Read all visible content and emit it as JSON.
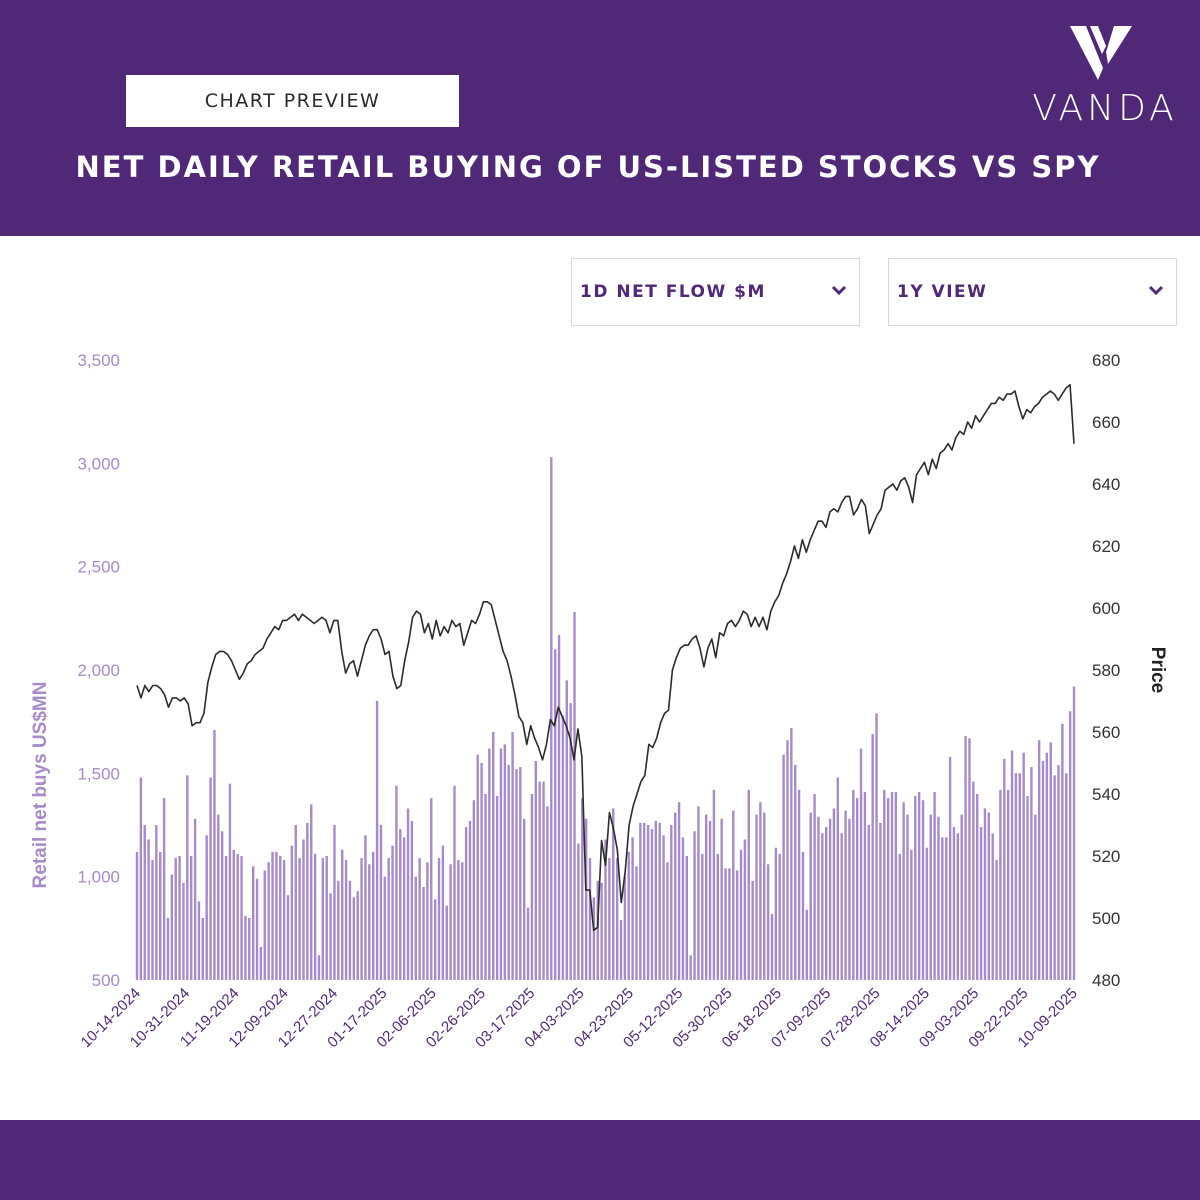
{
  "header": {
    "preview_label": "CHART PREVIEW",
    "title": "NET DAILY RETAIL BUYING OF US-LISTED STOCKS VS SPY",
    "brand": "VANDA",
    "background": "#512877"
  },
  "controls": {
    "metric_dropdown": "1D NET FLOW $M",
    "view_dropdown": "1Y VIEW",
    "dropdown_icon": "chevron-down-icon"
  },
  "chart_data": {
    "type": "bar+line",
    "title": "",
    "ylabel_left": "Retail net buys US$MN",
    "ylabel_right": "Price",
    "ylim_left": [
      500,
      3500
    ],
    "ylim_right": [
      480,
      680
    ],
    "yticks_left": [
      "500",
      "1,000",
      "1,500",
      "2,000",
      "2,500",
      "3,000",
      "3,500"
    ],
    "yticks_right": [
      "480",
      "500",
      "520",
      "540",
      "560",
      "580",
      "600",
      "620",
      "640",
      "660",
      "680"
    ],
    "xticks": [
      "10-14-2024",
      "10-31-2024",
      "11-19-2024",
      "12-09-2024",
      "12-27-2024",
      "01-17-2025",
      "02-06-2025",
      "02-26-2025",
      "03-17-2025",
      "04-03-2025",
      "04-23-2025",
      "05-12-2025",
      "05-30-2025",
      "06-18-2025",
      "07-09-2025",
      "07-28-2025",
      "08-14-2025",
      "09-03-2025",
      "09-22-2025",
      "10-09-2025"
    ],
    "bar_color": "#a78ac9",
    "line_color": "#2b2b2b",
    "series": [
      {
        "name": "Retail net buys",
        "axis": "left",
        "values": [
          1120,
          1480,
          1250,
          1180,
          1080,
          1250,
          1120,
          1380,
          800,
          1010,
          1090,
          1100,
          970,
          1490,
          1100,
          1280,
          880,
          800,
          1200,
          1480,
          1710,
          1300,
          1220,
          1100,
          1450,
          1130,
          1110,
          1100,
          810,
          800,
          1050,
          990,
          660,
          1030,
          1070,
          1120,
          1120,
          1100,
          1080,
          910,
          1150,
          1250,
          1090,
          1180,
          1260,
          1350,
          1110,
          620,
          1090,
          1100,
          920,
          1250,
          980,
          1130,
          1080,
          980,
          900,
          930,
          1090,
          1200,
          1060,
          1120,
          1850,
          1250,
          1000,
          1090,
          1150,
          1440,
          1230,
          1190,
          1330,
          1270,
          1000,
          1090,
          950,
          1070,
          1380,
          890,
          1090,
          1150,
          860,
          1060,
          1440,
          1080,
          1070,
          1240,
          1270,
          1370,
          1590,
          1550,
          1400,
          1620,
          1700,
          1390,
          1620,
          1640,
          1540,
          1700,
          1520,
          1530,
          1280,
          850,
          1400,
          1560,
          1460,
          1460,
          1340,
          3030,
          2100,
          2170,
          1780,
          1950,
          1840,
          2280,
          1160,
          1380,
          1280,
          1090,
          900,
          980,
          970,
          1180,
          1090,
          1330,
          1090,
          790,
          1000,
          1120,
          1190,
          1050,
          1260,
          1260,
          1250,
          1230,
          1270,
          1260,
          1200,
          1070,
          1250,
          1310,
          1360,
          1190,
          1100,
          620,
          1220,
          1340,
          1110,
          1300,
          1270,
          1420,
          1110,
          1280,
          1040,
          1040,
          1320,
          1030,
          1130,
          1180,
          1420,
          980,
          1300,
          1360,
          1310,
          1060,
          820,
          1140,
          1110,
          1590,
          1660,
          1720,
          1540,
          1420,
          1120,
          840,
          1310,
          1400,
          1290,
          1210,
          1240,
          1280,
          1330,
          1480,
          1210,
          1320,
          1280,
          1420,
          1380,
          1620,
          1410,
          1250,
          1690,
          1790,
          1260,
          1420,
          1380,
          1410,
          1410,
          1110,
          1360,
          1300,
          1130,
          1390,
          1410,
          1370,
          1140,
          1300,
          1410,
          1290,
          1190,
          1190,
          1580,
          1240,
          1210,
          1300,
          1680,
          1670,
          1460,
          1400,
          1240,
          1330,
          1310,
          1210,
          1080,
          1420,
          1570,
          1420,
          1610,
          1500,
          1500,
          1600,
          1390,
          1530,
          1300,
          1660,
          1560,
          1600,
          1650,
          1490,
          1540,
          1740,
          1500,
          1800,
          1920
        ]
      },
      {
        "name": "SPY",
        "axis": "right",
        "values": [
          575,
          571,
          575,
          573,
          575,
          575,
          574,
          572,
          568,
          571,
          571,
          570,
          571,
          569,
          562,
          563,
          563,
          566,
          576,
          581,
          585,
          586,
          586,
          585,
          583,
          580,
          577,
          579,
          582,
          583,
          585,
          586,
          587,
          590,
          592,
          594,
          593,
          596,
          596,
          597,
          598,
          596,
          598,
          597,
          596,
          595,
          596,
          597,
          596,
          592,
          596,
          596,
          586,
          579,
          582,
          583,
          578,
          583,
          588,
          591,
          593,
          593,
          590,
          585,
          586,
          578,
          574,
          575,
          583,
          589,
          597,
          599,
          598,
          592,
          595,
          590,
          596,
          591,
          594,
          592,
          596,
          594,
          595,
          588,
          592,
          596,
          595,
          598,
          602,
          602,
          601,
          596,
          591,
          586,
          583,
          578,
          572,
          565,
          563,
          556,
          562,
          558,
          555,
          551,
          556,
          564,
          562,
          568,
          565,
          562,
          558,
          551,
          561,
          552,
          509,
          509,
          496,
          497,
          525,
          517,
          534,
          529,
          522,
          505,
          515,
          530,
          536,
          540,
          544,
          546,
          556,
          555,
          558,
          563,
          566,
          567,
          580,
          584,
          587,
          588,
          588,
          590,
          591,
          587,
          581,
          587,
          590,
          584,
          592,
          591,
          595,
          596,
          594,
          596,
          599,
          598,
          594,
          597,
          594,
          597,
          593,
          599,
          602,
          604,
          608,
          611,
          615,
          620,
          616,
          622,
          618,
          622,
          625,
          628,
          628,
          626,
          631,
          632,
          631,
          634,
          636,
          636,
          630,
          632,
          635,
          633,
          624,
          627,
          630,
          632,
          638,
          639,
          640,
          638,
          641,
          642,
          639,
          634,
          643,
          645,
          647,
          643,
          648,
          645,
          650,
          651,
          653,
          651,
          655,
          657,
          656,
          660,
          658,
          662,
          660,
          662,
          664,
          666,
          666,
          668,
          667,
          669,
          669,
          670,
          665,
          661,
          664,
          663,
          665,
          666,
          668,
          669,
          670,
          669,
          667,
          669,
          671,
          672,
          653
        ]
      }
    ],
    "legend": "none",
    "grid": false
  }
}
